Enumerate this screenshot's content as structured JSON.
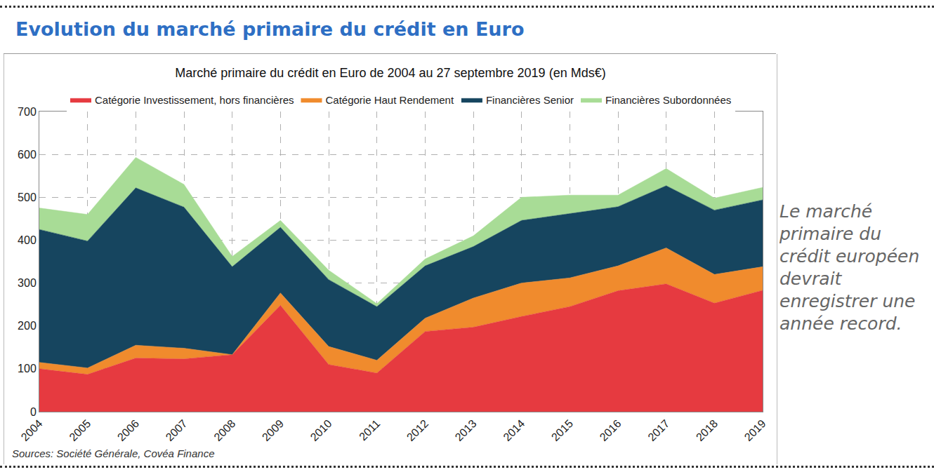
{
  "heading": "Evolution du marché primaire du crédit en Euro",
  "comment": "Le marché primaire du crédit européen devrait enregistrer une année record.",
  "source": "Sources: Société Générale, Covéa Finance",
  "chart_data": {
    "type": "area",
    "title": "Marché primaire du crédit en Euro de 2004 au 27 septembre 2019 (en Mds€)",
    "stacked": true,
    "grid": true,
    "legend": "top",
    "x": [
      2004,
      2005,
      2006,
      2007,
      2008,
      2009,
      2010,
      2011,
      2012,
      2013,
      2014,
      2015,
      2016,
      2017,
      2018,
      2019
    ],
    "xlim": [
      2004,
      2019
    ],
    "xticks": [
      2004,
      2005,
      2006,
      2007,
      2008,
      2009,
      2010,
      2011,
      2012,
      2013,
      2014,
      2015,
      2016,
      2017,
      2018,
      2019
    ],
    "ylim": [
      0,
      700
    ],
    "yticks": [
      0,
      100,
      200,
      300,
      400,
      500,
      600,
      700
    ],
    "series": [
      {
        "name": "Catégorie Investissement, hors financières",
        "color": "#e63a40",
        "values": [
          100,
          87,
          125,
          123,
          133,
          248,
          110,
          90,
          187,
          197,
          222,
          245,
          282,
          298,
          253,
          283
        ]
      },
      {
        "name": "Catégorie Haut Rendement",
        "color": "#f08b2d",
        "values": [
          15,
          15,
          30,
          25,
          0,
          29,
          42,
          30,
          31,
          68,
          78,
          67,
          58,
          84,
          67,
          55
        ]
      },
      {
        "name": "Financières Senior",
        "color": "#16455f",
        "values": [
          310,
          296,
          367,
          329,
          205,
          153,
          156,
          125,
          122,
          120,
          146,
          150,
          138,
          145,
          150,
          156
        ]
      },
      {
        "name": "Financières Subordonnées",
        "color": "#a8dc96",
        "values": [
          50,
          62,
          71,
          53,
          24,
          16,
          22,
          7,
          16,
          25,
          54,
          43,
          27,
          40,
          28,
          29
        ]
      }
    ]
  }
}
